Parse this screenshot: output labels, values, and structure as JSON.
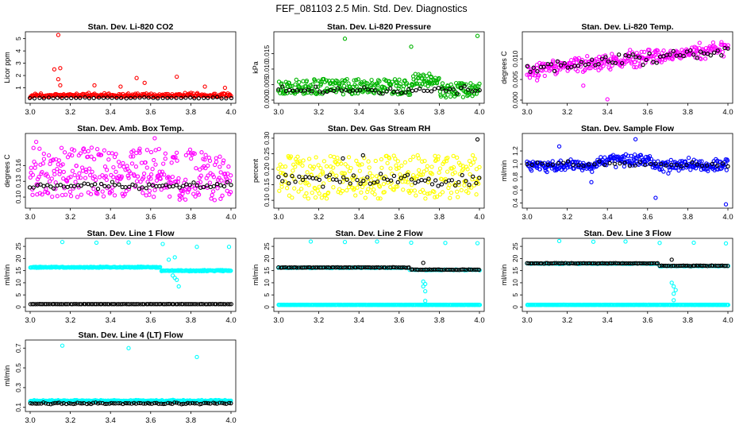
{
  "title": "FEF_081103  2.5 Min. Std. Dev. Diagnostics",
  "colors": {
    "red": "#ff0000",
    "green": "#00b400",
    "magenta": "#ff00ff",
    "yellow": "#ffff00",
    "blue": "#0000ff",
    "cyan": "#00ffff",
    "black": "#000000"
  },
  "chart_data": [
    {
      "type": "scatter",
      "title": "Stan. Dev. Li-820 CO2",
      "xlabel": "",
      "ylabel": "Licor ppm",
      "xlim": [
        3.0,
        4.0
      ],
      "ylim": [
        0,
        5.3
      ],
      "xticks": [
        "3.0",
        "3.2",
        "3.4",
        "3.6",
        "3.8",
        "4.0"
      ],
      "yticks": [
        {
          "v": 1,
          "l": "1"
        },
        {
          "v": 2,
          "l": "2"
        },
        {
          "v": 3,
          "l": "3"
        },
        {
          "v": 4,
          "l": "4"
        },
        {
          "v": 5,
          "l": "5"
        }
      ],
      "series": [
        {
          "name": "main",
          "color": "red",
          "kind": "noise",
          "n": 260,
          "base": 0.3,
          "spread": 0.3,
          "seed": 11,
          "outliers": [
            [
              3.14,
              5.3
            ],
            [
              3.15,
              2.6
            ],
            [
              3.14,
              1.7
            ],
            [
              3.15,
              1.2
            ],
            [
              3.53,
              1.8
            ],
            [
              3.57,
              1.4
            ],
            [
              3.73,
              1.9
            ],
            [
              3.32,
              1.2
            ],
            [
              3.97,
              1.0
            ],
            [
              3.87,
              1.1
            ],
            [
              3.45,
              1.1
            ],
            [
              3.12,
              2.5
            ]
          ]
        },
        {
          "name": "black",
          "color": "black",
          "kind": "noise",
          "n": 45,
          "base": 0.15,
          "spread": 0.1,
          "seed": 12
        }
      ]
    },
    {
      "type": "scatter",
      "title": "Stan. Dev. Li-820 Pressure",
      "xlabel": "",
      "ylabel": "kPa",
      "xlim": [
        3.0,
        4.0
      ],
      "ylim": [
        0,
        0.021
      ],
      "xticks": [
        "3.0",
        "3.2",
        "3.4",
        "3.6",
        "3.8",
        "4.0"
      ],
      "yticks": [
        {
          "v": 0.0,
          "l": "0.000"
        },
        {
          "v": 0.005,
          "l": "0.005"
        },
        {
          "v": 0.01,
          "l": "0.010"
        },
        {
          "v": 0.015,
          "l": "0.015"
        }
      ],
      "series": [
        {
          "name": "main",
          "color": "green",
          "kind": "pressure",
          "n": 320,
          "seed": 21,
          "outliers": [
            [
              3.33,
              0.0198
            ],
            [
              3.66,
              0.0172
            ],
            [
              3.99,
              0.0207
            ],
            [
              3.75,
              0.0085
            ],
            [
              3.72,
              0.0082
            ]
          ]
        },
        {
          "name": "black",
          "color": "black",
          "kind": "noise",
          "n": 55,
          "base": 0.0025,
          "spread": 0.0025,
          "seed": 22
        }
      ]
    },
    {
      "type": "scatter",
      "title": "Stan. Dev. Li-820 Temp.",
      "xlabel": "",
      "ylabel": "degrees C",
      "xlim": [
        3.0,
        4.0
      ],
      "ylim": [
        0,
        0.0158
      ],
      "xticks": [
        "3.0",
        "3.2",
        "3.4",
        "3.6",
        "3.8",
        "4.0"
      ],
      "yticks": [
        {
          "v": 0.0,
          "l": "0.000"
        },
        {
          "v": 0.005,
          "l": "0.005"
        },
        {
          "v": 0.01,
          "l": "0.010"
        }
      ],
      "series": [
        {
          "name": "main",
          "color": "magenta",
          "kind": "trend",
          "n": 300,
          "start": 0.0072,
          "end": 0.0125,
          "spread": 0.0022,
          "seed": 31,
          "outliers": [
            [
              3.4,
              0.0002
            ],
            [
              3.28,
              0.0035
            ],
            [
              3.05,
              0.0048
            ]
          ]
        },
        {
          "name": "black",
          "color": "black",
          "kind": "trend",
          "n": 60,
          "start": 0.0078,
          "end": 0.0122,
          "spread": 0.0018,
          "seed": 32
        }
      ]
    },
    {
      "type": "scatter",
      "title": "Stan. Dev. Amb. Box Temp.",
      "xlabel": "",
      "ylabel": "degrees C",
      "xlim": [
        3.0,
        4.0
      ],
      "ylim": [
        0.085,
        0.215
      ],
      "xticks": [
        "3.0",
        "3.2",
        "3.4",
        "3.6",
        "3.8",
        "4.0"
      ],
      "yticks": [
        {
          "v": 0.1,
          "l": "0.10"
        },
        {
          "v": 0.13,
          "l": "0.13"
        },
        {
          "v": 0.16,
          "l": "0.16"
        }
      ],
      "series": [
        {
          "name": "main",
          "color": "magenta",
          "kind": "box",
          "n": 330,
          "seed": 41,
          "outliers": [
            [
              3.62,
              0.212
            ],
            [
              3.03,
              0.205
            ]
          ]
        },
        {
          "name": "black",
          "color": "black",
          "kind": "noise",
          "n": 60,
          "base": 0.118,
          "spread": 0.014,
          "seed": 42
        }
      ]
    },
    {
      "type": "scatter",
      "title": "Stan. Dev. Gas Stream RH",
      "xlabel": "",
      "ylabel": "percent",
      "xlim": [
        3.0,
        4.0
      ],
      "ylim": [
        0.085,
        0.305
      ],
      "xticks": [
        "3.0",
        "3.2",
        "3.4",
        "3.6",
        "3.8",
        "4.0"
      ],
      "yticks": [
        {
          "v": 0.1,
          "l": "0.10"
        },
        {
          "v": 0.15,
          "l": "0.15"
        },
        {
          "v": 0.2,
          "l": "0.20"
        },
        {
          "v": 0.25,
          "l": "0.25"
        },
        {
          "v": 0.3,
          "l": "0.30"
        }
      ],
      "series": [
        {
          "name": "main",
          "color": "yellow",
          "kind": "rh",
          "n": 300,
          "seed": 51
        },
        {
          "name": "black",
          "color": "black",
          "kind": "noise",
          "n": 60,
          "base": 0.15,
          "spread": 0.05,
          "seed": 52,
          "outliers": [
            [
              3.99,
              0.296
            ],
            [
              3.42,
              0.245
            ],
            [
              3.32,
              0.235
            ]
          ]
        }
      ]
    },
    {
      "type": "scatter",
      "title": "Stan. Dev. Sample Flow",
      "xlabel": "",
      "ylabel": "ml/min",
      "xlim": [
        3.0,
        4.0
      ],
      "ylim": [
        0.37,
        1.42
      ],
      "xticks": [
        "3.0",
        "3.2",
        "3.4",
        "3.6",
        "3.8",
        "4.0"
      ],
      "yticks": [
        {
          "v": 0.4,
          "l": "0.4"
        },
        {
          "v": 0.6,
          "l": "0.6"
        },
        {
          "v": 0.8,
          "l": "0.8"
        },
        {
          "v": 1.0,
          "l": "1.0"
        },
        {
          "v": 1.2,
          "l": "1.2"
        }
      ],
      "series": [
        {
          "name": "main",
          "color": "blue",
          "kind": "sample",
          "n": 330,
          "seed": 61,
          "outliers": [
            [
              3.99,
              0.38
            ],
            [
              3.64,
              0.48
            ],
            [
              3.32,
              0.72
            ],
            [
              3.54,
              1.38
            ],
            [
              3.16,
              1.27
            ]
          ]
        },
        {
          "name": "black",
          "color": "black",
          "kind": "noise",
          "n": 40,
          "base": 0.97,
          "spread": 0.08,
          "seed": 62
        }
      ]
    },
    {
      "type": "scatter",
      "title": "Stan. Dev. Line 1 Flow",
      "xlabel": "",
      "ylabel": "ml/min",
      "xlim": [
        3.0,
        4.0
      ],
      "ylim": [
        -0.5,
        27
      ],
      "xticks": [
        "3.0",
        "3.2",
        "3.4",
        "3.6",
        "3.8",
        "4.0"
      ],
      "yticks": [
        {
          "v": 0,
          "l": "0"
        },
        {
          "v": 5,
          "l": "5"
        },
        {
          "v": 10,
          "l": "10"
        },
        {
          "v": 15,
          "l": "15"
        },
        {
          "v": 20,
          "l": "20"
        },
        {
          "v": 25,
          "l": "25"
        }
      ],
      "series": [
        {
          "name": "main",
          "color": "cyan",
          "kind": "band",
          "n": 300,
          "level": 16.4,
          "step": 15.0,
          "stepAt": 3.65,
          "spread": 0.3,
          "seed": 71,
          "outliers": [
            [
              3.16,
              26.8
            ],
            [
              3.33,
              26.5
            ],
            [
              3.49,
              26.6
            ],
            [
              3.66,
              26.0
            ],
            [
              3.83,
              24.8
            ],
            [
              3.99,
              24.8
            ],
            [
              3.74,
              8.5
            ],
            [
              3.73,
              11.2
            ],
            [
              3.71,
              13.0
            ],
            [
              3.69,
              19.5
            ],
            [
              3.72,
              20.5
            ],
            [
              3.72,
              12.0
            ]
          ]
        },
        {
          "name": "black",
          "color": "black",
          "kind": "line",
          "n": 110,
          "level": 1.2,
          "spread": 0.05,
          "seed": 72
        }
      ]
    },
    {
      "type": "scatter",
      "title": "Stan. Dev. Line 2 Flow",
      "xlabel": "",
      "ylabel": "ml/min",
      "xlim": [
        3.0,
        4.0
      ],
      "ylim": [
        -0.5,
        27
      ],
      "xticks": [
        "3.0",
        "3.2",
        "3.4",
        "3.6",
        "3.8",
        "4.0"
      ],
      "yticks": [
        {
          "v": 0,
          "l": "0"
        },
        {
          "v": 5,
          "l": "5"
        },
        {
          "v": 10,
          "l": "10"
        },
        {
          "v": 15,
          "l": "15"
        },
        {
          "v": 20,
          "l": "20"
        },
        {
          "v": 25,
          "l": "25"
        }
      ],
      "series": [
        {
          "name": "main",
          "color": "cyan",
          "kind": "band",
          "n": 110,
          "level": 16.2,
          "step": 15.3,
          "stepAt": 3.65,
          "spread": 0.25,
          "seed": 81,
          "outliers": [
            [
              3.16,
              27.0
            ],
            [
              3.33,
              26.8
            ],
            [
              3.49,
              27.0
            ],
            [
              3.66,
              26.5
            ],
            [
              3.83,
              26.4
            ],
            [
              3.99,
              26.3
            ],
            [
              3.73,
              9.5
            ],
            [
              3.72,
              8.5
            ],
            [
              3.73,
              6.5
            ],
            [
              3.73,
              2.5
            ],
            [
              3.72,
              10.5
            ]
          ]
        },
        {
          "name": "low",
          "color": "cyan",
          "kind": "line",
          "n": 280,
          "level": 0.9,
          "spread": 0.08,
          "seed": 83
        },
        {
          "name": "black",
          "color": "black",
          "kind": "band",
          "n": 110,
          "level": 16.3,
          "step": 15.4,
          "stepAt": 3.65,
          "spread": 0.15,
          "seed": 82,
          "outliers": [
            [
              3.72,
              18.2
            ]
          ]
        }
      ]
    },
    {
      "type": "scatter",
      "title": "Stan. Dev. Line 3 Flow",
      "xlabel": "",
      "ylabel": "ml/min",
      "xlim": [
        3.0,
        4.0
      ],
      "ylim": [
        -0.5,
        27
      ],
      "xticks": [
        "3.0",
        "3.2",
        "3.4",
        "3.6",
        "3.8",
        "4.0"
      ],
      "yticks": [
        {
          "v": 0,
          "l": "0"
        },
        {
          "v": 5,
          "l": "5"
        },
        {
          "v": 10,
          "l": "10"
        },
        {
          "v": 15,
          "l": "15"
        },
        {
          "v": 20,
          "l": "20"
        },
        {
          "v": 25,
          "l": "25"
        }
      ],
      "series": [
        {
          "name": "main",
          "color": "cyan",
          "kind": "band",
          "n": 110,
          "level": 17.9,
          "step": 16.9,
          "stepAt": 3.65,
          "spread": 0.25,
          "seed": 91,
          "outliers": [
            [
              3.16,
              27.2
            ],
            [
              3.33,
              26.9
            ],
            [
              3.49,
              27.0
            ],
            [
              3.66,
              26.4
            ],
            [
              3.83,
              26.5
            ],
            [
              3.99,
              26.2
            ],
            [
              3.73,
              8.5
            ],
            [
              3.73,
              5.5
            ],
            [
              3.73,
              2.8
            ],
            [
              3.72,
              10.0
            ],
            [
              3.74,
              7.0
            ]
          ]
        },
        {
          "name": "low",
          "color": "cyan",
          "kind": "line",
          "n": 280,
          "level": 0.9,
          "spread": 0.08,
          "seed": 93
        },
        {
          "name": "black",
          "color": "black",
          "kind": "band",
          "n": 110,
          "level": 18.0,
          "step": 17.0,
          "stepAt": 3.65,
          "spread": 0.15,
          "seed": 92,
          "outliers": [
            [
              3.72,
              19.5
            ]
          ]
        }
      ]
    },
    {
      "type": "scatter",
      "title": "Stan. Dev. Line 4 (LT) Flow",
      "xlabel": "",
      "ylabel": "ml/min",
      "xlim": [
        3.0,
        4.0
      ],
      "ylim": [
        0.09,
        0.75
      ],
      "xticks": [
        "3.0",
        "3.2",
        "3.4",
        "3.6",
        "3.8",
        "4.0"
      ],
      "yticks": [
        {
          "v": 0.1,
          "l": "0.1"
        },
        {
          "v": 0.3,
          "l": "0.3"
        },
        {
          "v": 0.5,
          "l": "0.5"
        },
        {
          "v": 0.7,
          "l": "0.7"
        }
      ],
      "series": [
        {
          "name": "main",
          "color": "cyan",
          "kind": "line",
          "n": 320,
          "level": 0.165,
          "spread": 0.012,
          "seed": 101,
          "outliers": [
            [
              3.16,
              0.725
            ],
            [
              3.49,
              0.7
            ],
            [
              3.83,
              0.61
            ]
          ]
        },
        {
          "name": "black",
          "color": "black",
          "kind": "line",
          "n": 90,
          "level": 0.14,
          "spread": 0.012,
          "seed": 102
        }
      ]
    }
  ]
}
